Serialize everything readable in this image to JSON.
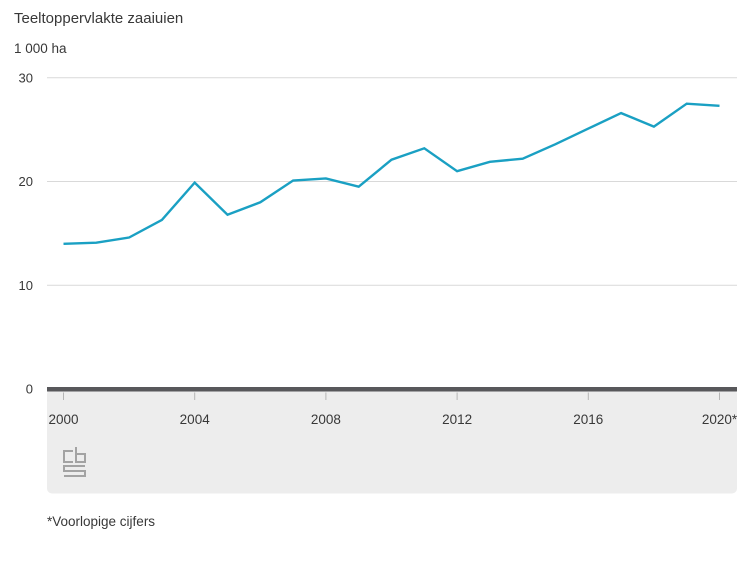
{
  "header": {
    "title": "Teeltoppervlakte zaaiuien",
    "unit": "1 000 ha"
  },
  "footnote": "*Voorlopige cijfers",
  "logo": {
    "name": "cbs-logo"
  },
  "colors": {
    "line": "#1aa0c3",
    "grid": "#d9d9d9",
    "axis": "#58585b",
    "band": "#ededed",
    "text": "#383838",
    "tick_mark": "#b5b5b5",
    "logo": "#a3a3a3"
  },
  "chart_data": {
    "type": "line",
    "title": "Teeltoppervlakte zaaiuien",
    "ylabel": "1 000 ha",
    "x": [
      2000,
      2001,
      2002,
      2003,
      2004,
      2005,
      2006,
      2007,
      2008,
      2009,
      2010,
      2011,
      2012,
      2013,
      2014,
      2015,
      2016,
      2017,
      2018,
      2019,
      2020
    ],
    "series": [
      {
        "name": "Teeltoppervlakte zaaiuien (1 000 ha)",
        "values": [
          14.0,
          14.1,
          14.6,
          16.3,
          19.9,
          16.8,
          18.0,
          20.1,
          20.3,
          19.5,
          22.1,
          23.2,
          21.0,
          21.9,
          22.2,
          23.6,
          25.1,
          26.6,
          25.3,
          27.5,
          27.3
        ]
      }
    ],
    "ylim": [
      0,
      30
    ],
    "yticks": [
      0,
      10,
      20,
      30
    ],
    "xtick_years": [
      2000,
      2004,
      2008,
      2012,
      2016,
      2020
    ],
    "xtick_labels": [
      "2000",
      "2004",
      "2008",
      "2012",
      "2016",
      "2020*"
    ],
    "grid": true,
    "legend": false,
    "footnote": "*Voorlopige cijfers"
  }
}
